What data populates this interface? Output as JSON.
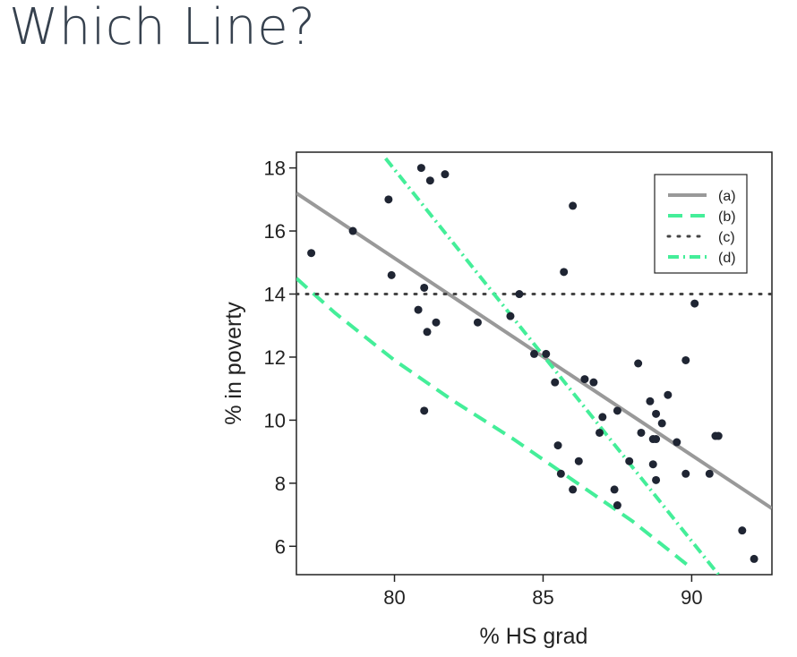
{
  "slide": {
    "title": "Which Line?"
  },
  "chart_data": {
    "type": "scatter",
    "title": "",
    "xlabel": "% HS grad",
    "ylabel": "% in poverty",
    "xlim": [
      76.7,
      92.7
    ],
    "ylim": [
      5.1,
      18.5
    ],
    "xticks": [
      80,
      85,
      90
    ],
    "yticks": [
      6,
      8,
      10,
      12,
      14,
      16,
      18
    ],
    "grid": false,
    "legend_position": "top-right",
    "points": [
      [
        77.2,
        15.3
      ],
      [
        78.6,
        16.0
      ],
      [
        79.8,
        17.0
      ],
      [
        79.9,
        14.6
      ],
      [
        80.8,
        13.5
      ],
      [
        80.9,
        18.0
      ],
      [
        81.0,
        14.2
      ],
      [
        81.0,
        10.3
      ],
      [
        81.1,
        12.8
      ],
      [
        81.2,
        17.6
      ],
      [
        81.4,
        13.1
      ],
      [
        81.7,
        17.8
      ],
      [
        82.8,
        13.1
      ],
      [
        83.9,
        13.3
      ],
      [
        84.2,
        14.0
      ],
      [
        84.7,
        12.1
      ],
      [
        85.1,
        12.1
      ],
      [
        85.4,
        11.2
      ],
      [
        85.5,
        9.2
      ],
      [
        85.6,
        8.3
      ],
      [
        85.7,
        14.7
      ],
      [
        86.0,
        16.8
      ],
      [
        86.0,
        7.8
      ],
      [
        86.2,
        8.7
      ],
      [
        86.4,
        11.3
      ],
      [
        86.7,
        11.2
      ],
      [
        86.9,
        9.6
      ],
      [
        87.0,
        10.1
      ],
      [
        87.4,
        7.8
      ],
      [
        87.5,
        7.3
      ],
      [
        87.5,
        10.3
      ],
      [
        87.9,
        8.7
      ],
      [
        88.2,
        11.8
      ],
      [
        88.3,
        9.6
      ],
      [
        88.6,
        10.6
      ],
      [
        88.7,
        8.6
      ],
      [
        88.7,
        9.4
      ],
      [
        88.8,
        8.1
      ],
      [
        88.8,
        9.4
      ],
      [
        88.8,
        10.2
      ],
      [
        89.0,
        9.9
      ],
      [
        89.2,
        10.8
      ],
      [
        89.5,
        9.3
      ],
      [
        89.8,
        11.9
      ],
      [
        89.8,
        8.3
      ],
      [
        90.1,
        13.7
      ],
      [
        90.6,
        8.3
      ],
      [
        90.8,
        9.5
      ],
      [
        90.9,
        9.5
      ],
      [
        91.7,
        6.5
      ],
      [
        92.1,
        5.6
      ]
    ],
    "lines": [
      {
        "name": "(a)",
        "style": "solid",
        "color": "#999999",
        "points": [
          [
            76.7,
            17.2
          ],
          [
            92.7,
            7.2
          ]
        ]
      },
      {
        "name": "(b)",
        "style": "dashed",
        "color": "#44ee99",
        "points": [
          [
            76.7,
            14.5
          ],
          [
            78,
            13.4
          ],
          [
            80,
            11.9
          ],
          [
            82,
            10.6
          ],
          [
            84,
            9.4
          ],
          [
            86,
            8.1
          ],
          [
            88,
            6.8
          ],
          [
            90,
            5.3
          ]
        ]
      },
      {
        "name": "(c)",
        "style": "dotted",
        "color": "#444444",
        "points": [
          [
            76.7,
            14.0
          ],
          [
            92.7,
            14.0
          ]
        ]
      },
      {
        "name": "(d)",
        "style": "dotdash",
        "color": "#44ee99",
        "points": [
          [
            79.7,
            18.3
          ],
          [
            90.9,
            5.1
          ]
        ]
      }
    ],
    "point_color": "#1f2533",
    "legend": [
      "(a)",
      "(b)",
      "(c)",
      "(d)"
    ]
  }
}
